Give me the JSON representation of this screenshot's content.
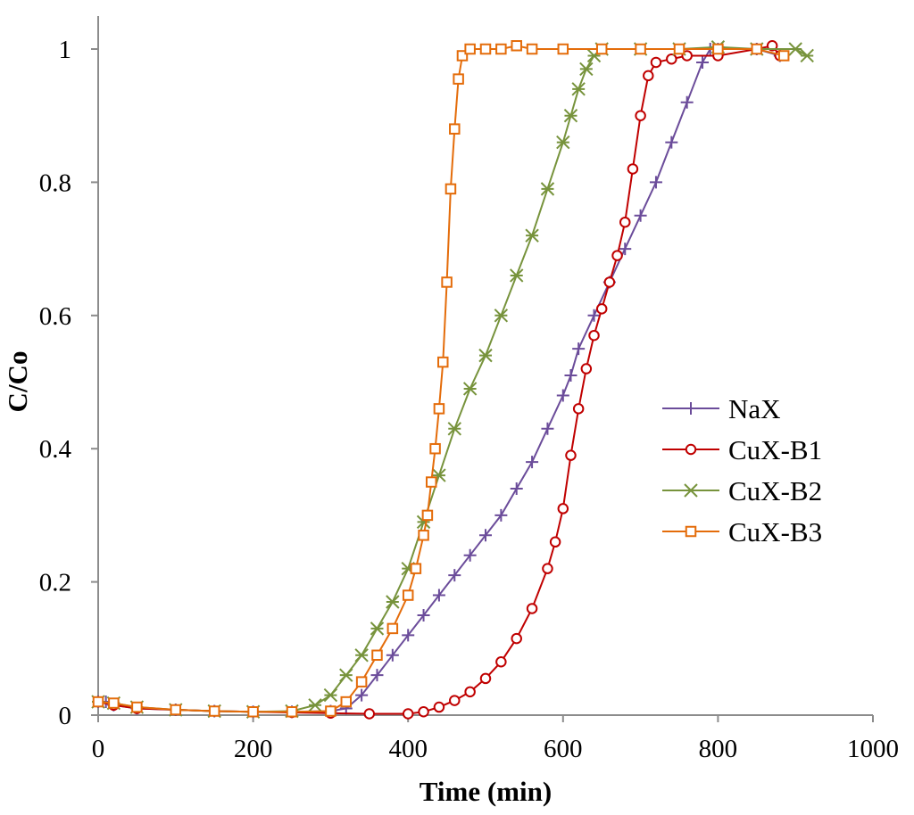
{
  "chart_data": {
    "type": "line",
    "title": "",
    "xlabel": "Time (min)",
    "ylabel": "C/Co",
    "xlim": [
      0,
      1000
    ],
    "ylim": [
      0,
      1
    ],
    "x_ticks": [
      "0",
      "200",
      "400",
      "600",
      "800",
      "1000"
    ],
    "y_ticks": [
      "0",
      "0.2",
      "0.4",
      "0.6",
      "0.8",
      "1"
    ],
    "grid": false,
    "legend_position": "right",
    "series": [
      {
        "name": "NaX",
        "marker": "plus",
        "color": "#6B4C9A",
        "points": [
          [
            0,
            0.02
          ],
          [
            10,
            0.02
          ],
          [
            20,
            0.015
          ],
          [
            50,
            0.01
          ],
          [
            100,
            0.008
          ],
          [
            150,
            0.006
          ],
          [
            200,
            0.005
          ],
          [
            250,
            0.005
          ],
          [
            300,
            0.006
          ],
          [
            320,
            0.01
          ],
          [
            340,
            0.03
          ],
          [
            360,
            0.06
          ],
          [
            380,
            0.09
          ],
          [
            400,
            0.12
          ],
          [
            420,
            0.15
          ],
          [
            440,
            0.18
          ],
          [
            460,
            0.21
          ],
          [
            480,
            0.24
          ],
          [
            500,
            0.27
          ],
          [
            520,
            0.3
          ],
          [
            540,
            0.34
          ],
          [
            560,
            0.38
          ],
          [
            580,
            0.43
          ],
          [
            600,
            0.48
          ],
          [
            610,
            0.51
          ],
          [
            620,
            0.55
          ],
          [
            640,
            0.6
          ],
          [
            660,
            0.65
          ],
          [
            680,
            0.7
          ],
          [
            700,
            0.75
          ],
          [
            720,
            0.8
          ],
          [
            740,
            0.86
          ],
          [
            760,
            0.92
          ],
          [
            780,
            0.98
          ],
          [
            790,
            1.0
          ],
          [
            800,
            1.0
          ],
          [
            850,
            1.0
          ],
          [
            880,
            0.99
          ]
        ]
      },
      {
        "name": "CuX-B1",
        "marker": "circle",
        "color": "#C00000",
        "points": [
          [
            0,
            0.02
          ],
          [
            20,
            0.015
          ],
          [
            50,
            0.01
          ],
          [
            100,
            0.008
          ],
          [
            150,
            0.006
          ],
          [
            200,
            0.005
          ],
          [
            250,
            0.004
          ],
          [
            300,
            0.003
          ],
          [
            350,
            0.002
          ],
          [
            400,
            0.002
          ],
          [
            420,
            0.005
          ],
          [
            440,
            0.012
          ],
          [
            460,
            0.022
          ],
          [
            480,
            0.035
          ],
          [
            500,
            0.055
          ],
          [
            520,
            0.08
          ],
          [
            540,
            0.115
          ],
          [
            560,
            0.16
          ],
          [
            580,
            0.22
          ],
          [
            590,
            0.26
          ],
          [
            600,
            0.31
          ],
          [
            610,
            0.39
          ],
          [
            620,
            0.46
          ],
          [
            630,
            0.52
          ],
          [
            640,
            0.57
          ],
          [
            650,
            0.61
          ],
          [
            660,
            0.65
          ],
          [
            670,
            0.69
          ],
          [
            680,
            0.74
          ],
          [
            690,
            0.82
          ],
          [
            700,
            0.9
          ],
          [
            710,
            0.96
          ],
          [
            720,
            0.98
          ],
          [
            740,
            0.985
          ],
          [
            760,
            0.99
          ],
          [
            800,
            0.99
          ],
          [
            850,
            1.0
          ],
          [
            870,
            1.005
          ],
          [
            880,
            0.99
          ]
        ]
      },
      {
        "name": "CuX-B2",
        "marker": "x",
        "color": "#77933C",
        "points": [
          [
            0,
            0.02
          ],
          [
            20,
            0.018
          ],
          [
            50,
            0.012
          ],
          [
            100,
            0.008
          ],
          [
            150,
            0.006
          ],
          [
            200,
            0.005
          ],
          [
            250,
            0.006
          ],
          [
            280,
            0.015
          ],
          [
            300,
            0.03
          ],
          [
            320,
            0.06
          ],
          [
            340,
            0.09
          ],
          [
            360,
            0.13
          ],
          [
            380,
            0.17
          ],
          [
            400,
            0.22
          ],
          [
            420,
            0.29
          ],
          [
            440,
            0.36
          ],
          [
            460,
            0.43
          ],
          [
            480,
            0.49
          ],
          [
            500,
            0.54
          ],
          [
            520,
            0.6
          ],
          [
            540,
            0.66
          ],
          [
            560,
            0.72
          ],
          [
            580,
            0.79
          ],
          [
            600,
            0.86
          ],
          [
            610,
            0.9
          ],
          [
            620,
            0.94
          ],
          [
            630,
            0.97
          ],
          [
            640,
            0.99
          ],
          [
            650,
            1.0
          ],
          [
            700,
            1.0
          ],
          [
            750,
            1.0
          ],
          [
            800,
            1.003
          ],
          [
            850,
            1.0
          ],
          [
            900,
            1.0
          ],
          [
            915,
            0.99
          ]
        ]
      },
      {
        "name": "CuX-B3",
        "marker": "square",
        "color": "#E46C0A",
        "points": [
          [
            0,
            0.02
          ],
          [
            20,
            0.018
          ],
          [
            50,
            0.012
          ],
          [
            100,
            0.008
          ],
          [
            150,
            0.006
          ],
          [
            200,
            0.005
          ],
          [
            250,
            0.005
          ],
          [
            300,
            0.006
          ],
          [
            320,
            0.02
          ],
          [
            340,
            0.05
          ],
          [
            360,
            0.09
          ],
          [
            380,
            0.13
          ],
          [
            400,
            0.18
          ],
          [
            410,
            0.22
          ],
          [
            420,
            0.27
          ],
          [
            425,
            0.3
          ],
          [
            430,
            0.35
          ],
          [
            435,
            0.4
          ],
          [
            440,
            0.46
          ],
          [
            445,
            0.53
          ],
          [
            450,
            0.65
          ],
          [
            455,
            0.79
          ],
          [
            460,
            0.88
          ],
          [
            465,
            0.955
          ],
          [
            470,
            0.99
          ],
          [
            480,
            1.0
          ],
          [
            500,
            1.0
          ],
          [
            520,
            1.0
          ],
          [
            540,
            1.005
          ],
          [
            560,
            1.0
          ],
          [
            600,
            1.0
          ],
          [
            650,
            1.0
          ],
          [
            700,
            1.0
          ],
          [
            750,
            1.0
          ],
          [
            800,
            1.0
          ],
          [
            850,
            1.0
          ],
          [
            885,
            0.99
          ]
        ]
      }
    ]
  }
}
